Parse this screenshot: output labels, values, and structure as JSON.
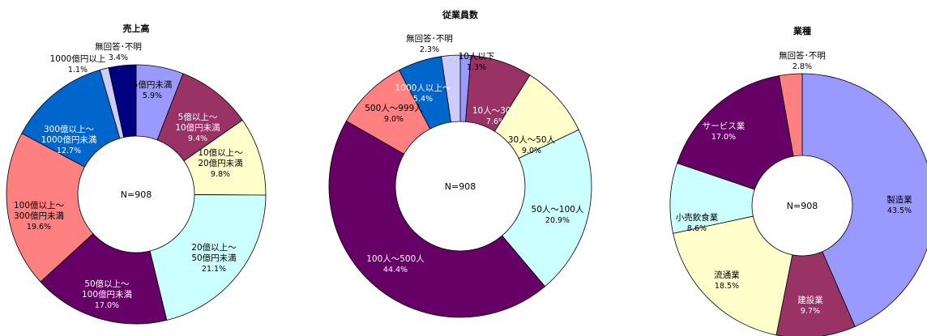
{
  "colors": {
    "periwinkle": "#9999ff",
    "plum": "#993366",
    "cream": "#ffffcc",
    "light_cyan": "#ccffff",
    "purple": "#660066",
    "salmon": "#ff8080",
    "blue": "#0066cc",
    "lavender": "#ccccff",
    "navy": "#000080"
  },
  "chart_data": [
    {
      "type": "pie",
      "title": "売上高",
      "center_label": "N=908",
      "start": "top",
      "direction": "clockwise",
      "slices": [
        {
          "name": "5億円未満",
          "value": 5.9,
          "pct_label": "5.9%",
          "color": "#9999ff"
        },
        {
          "name": "5億以上～10億円未満",
          "value": 9.4,
          "pct_label": "9.4%",
          "color": "#993366"
        },
        {
          "name": "10億以上～20億円未満",
          "value": 9.8,
          "pct_label": "9.8%",
          "color": "#ffffcc"
        },
        {
          "name": "20億以上～50億円未満",
          "value": 21.1,
          "pct_label": "21.1%",
          "color": "#ccffff"
        },
        {
          "name": "50億以上～100億円未満",
          "value": 17.0,
          "pct_label": "17.0%",
          "color": "#660066"
        },
        {
          "name": "100億以上～300億円未満",
          "value": 19.6,
          "pct_label": "19.6%",
          "color": "#ff8080"
        },
        {
          "name": "300億以上～1000億円未満",
          "value": 12.7,
          "pct_label": "12.7%",
          "color": "#0066cc"
        },
        {
          "name": "1000億円以上",
          "value": 1.1,
          "pct_label": "1.1%",
          "color": "#ccccff"
        },
        {
          "name": "無回答･不明",
          "value": 3.4,
          "pct_label": "3.4%",
          "color": "#000080"
        }
      ]
    },
    {
      "type": "pie",
      "title": "従業員数",
      "center_label": "N=908",
      "start": "top",
      "direction": "clockwise",
      "slices": [
        {
          "name": "10人以下",
          "value": 1.3,
          "pct_label": "1.3%",
          "color": "#9999ff"
        },
        {
          "name": "10人～30人",
          "value": 7.6,
          "pct_label": "7.6%",
          "color": "#993366"
        },
        {
          "name": "30人～50人",
          "value": 9.0,
          "pct_label": "9.0%",
          "color": "#ffffcc"
        },
        {
          "name": "50人～100人",
          "value": 20.9,
          "pct_label": "20.9%",
          "color": "#ccffff"
        },
        {
          "name": "100人～500人",
          "value": 44.4,
          "pct_label": "44.4%",
          "color": "#660066"
        },
        {
          "name": "500人～999人",
          "value": 9.0,
          "pct_label": "9.0%",
          "color": "#ff8080"
        },
        {
          "name": "1000人以上～",
          "value": 5.4,
          "pct_label": "5.4%",
          "color": "#0066cc"
        },
        {
          "name": "無回答･不明",
          "value": 2.3,
          "pct_label": "2.3%",
          "color": "#ccccff"
        }
      ]
    },
    {
      "type": "pie",
      "title": "業種",
      "center_label": "N=908",
      "start": "top",
      "direction": "clockwise",
      "slices": [
        {
          "name": "製造業",
          "value": 43.5,
          "pct_label": "43.5%",
          "color": "#9999ff"
        },
        {
          "name": "建設業",
          "value": 9.7,
          "pct_label": "9.7%",
          "color": "#993366"
        },
        {
          "name": "流通業",
          "value": 18.5,
          "pct_label": "18.5%",
          "color": "#ffffcc"
        },
        {
          "name": "小売飲食業",
          "value": 8.6,
          "pct_label": "8.6%",
          "color": "#ccffff"
        },
        {
          "name": "サービス業",
          "value": 17.0,
          "pct_label": "17.0%",
          "color": "#660066"
        },
        {
          "name": "無回答･不明",
          "value": 2.8,
          "pct_label": "2.8%",
          "color": "#ff8080"
        }
      ]
    }
  ]
}
